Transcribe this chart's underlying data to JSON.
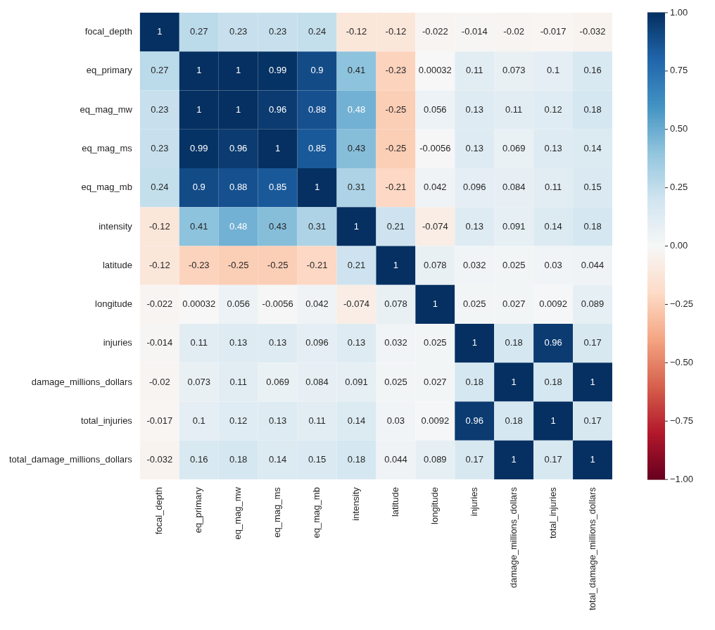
{
  "chart_data": {
    "type": "heatmap",
    "categories": [
      "focal_depth",
      "eq_primary",
      "eq_mag_mw",
      "eq_mag_ms",
      "eq_mag_mb",
      "intensity",
      "latitude",
      "longitude",
      "injuries",
      "damage_millions_dollars",
      "total_injuries",
      "total_damage_millions_dollars"
    ],
    "y_categories": [
      "focal_depth",
      "eq_primary",
      "eq_mag_mw",
      "eq_mag_ms",
      "eq_mag_mb",
      "intensity",
      "latitude",
      "longitude",
      "injuries",
      "damage_millions_dollars",
      "total_injuries",
      "total_damage_millions_dollars"
    ],
    "cells": [
      [
        1,
        0.27,
        0.23,
        0.23,
        0.24,
        -0.12,
        -0.12,
        -0.022,
        -0.014,
        -0.02,
        -0.017,
        -0.032
      ],
      [
        0.27,
        1,
        1,
        0.99,
        0.9,
        0.41,
        -0.23,
        0.00032,
        0.11,
        0.073,
        0.1,
        0.16
      ],
      [
        0.23,
        1,
        1,
        0.96,
        0.88,
        0.48,
        -0.25,
        0.056,
        0.13,
        0.11,
        0.12,
        0.18
      ],
      [
        0.23,
        0.99,
        0.96,
        1,
        0.85,
        0.43,
        -0.25,
        -0.0056,
        0.13,
        0.069,
        0.13,
        0.14
      ],
      [
        0.24,
        0.9,
        0.88,
        0.85,
        1,
        0.31,
        -0.21,
        0.042,
        0.096,
        0.084,
        0.11,
        0.15
      ],
      [
        -0.12,
        0.41,
        0.48,
        0.43,
        0.31,
        1,
        0.21,
        -0.074,
        0.13,
        0.091,
        0.14,
        0.18
      ],
      [
        -0.12,
        -0.23,
        -0.25,
        -0.25,
        -0.21,
        0.21,
        1,
        0.078,
        0.032,
        0.025,
        0.03,
        0.044
      ],
      [
        -0.022,
        0.00032,
        0.056,
        -0.0056,
        0.042,
        -0.074,
        0.078,
        1,
        0.025,
        0.027,
        0.0092,
        0.089
      ],
      [
        -0.014,
        0.11,
        0.13,
        0.13,
        0.096,
        0.13,
        0.032,
        0.025,
        1,
        0.18,
        0.96,
        0.17
      ],
      [
        -0.02,
        0.073,
        0.11,
        0.069,
        0.084,
        0.091,
        0.025,
        0.027,
        0.18,
        1,
        0.18,
        1
      ],
      [
        -0.017,
        0.1,
        0.12,
        0.13,
        0.11,
        0.14,
        0.03,
        0.0092,
        0.96,
        0.18,
        1,
        0.17
      ],
      [
        -0.032,
        0.16,
        0.18,
        0.14,
        0.15,
        0.18,
        0.044,
        0.089,
        0.17,
        1,
        0.17,
        1
      ]
    ],
    "clim": [
      -1,
      1
    ],
    "cticks": [
      {
        "value": 1,
        "label": "1.00"
      },
      {
        "value": 0.75,
        "label": "0.75"
      },
      {
        "value": 0.5,
        "label": "0.50"
      },
      {
        "value": 0.25,
        "label": "0.25"
      },
      {
        "value": 0,
        "label": "0.00"
      },
      {
        "value": -0.25,
        "label": "−0.25"
      },
      {
        "value": -0.5,
        "label": "−0.50"
      },
      {
        "value": -0.75,
        "label": "−0.75"
      },
      {
        "value": -1,
        "label": "−1.00"
      }
    ],
    "data_labels": true
  }
}
